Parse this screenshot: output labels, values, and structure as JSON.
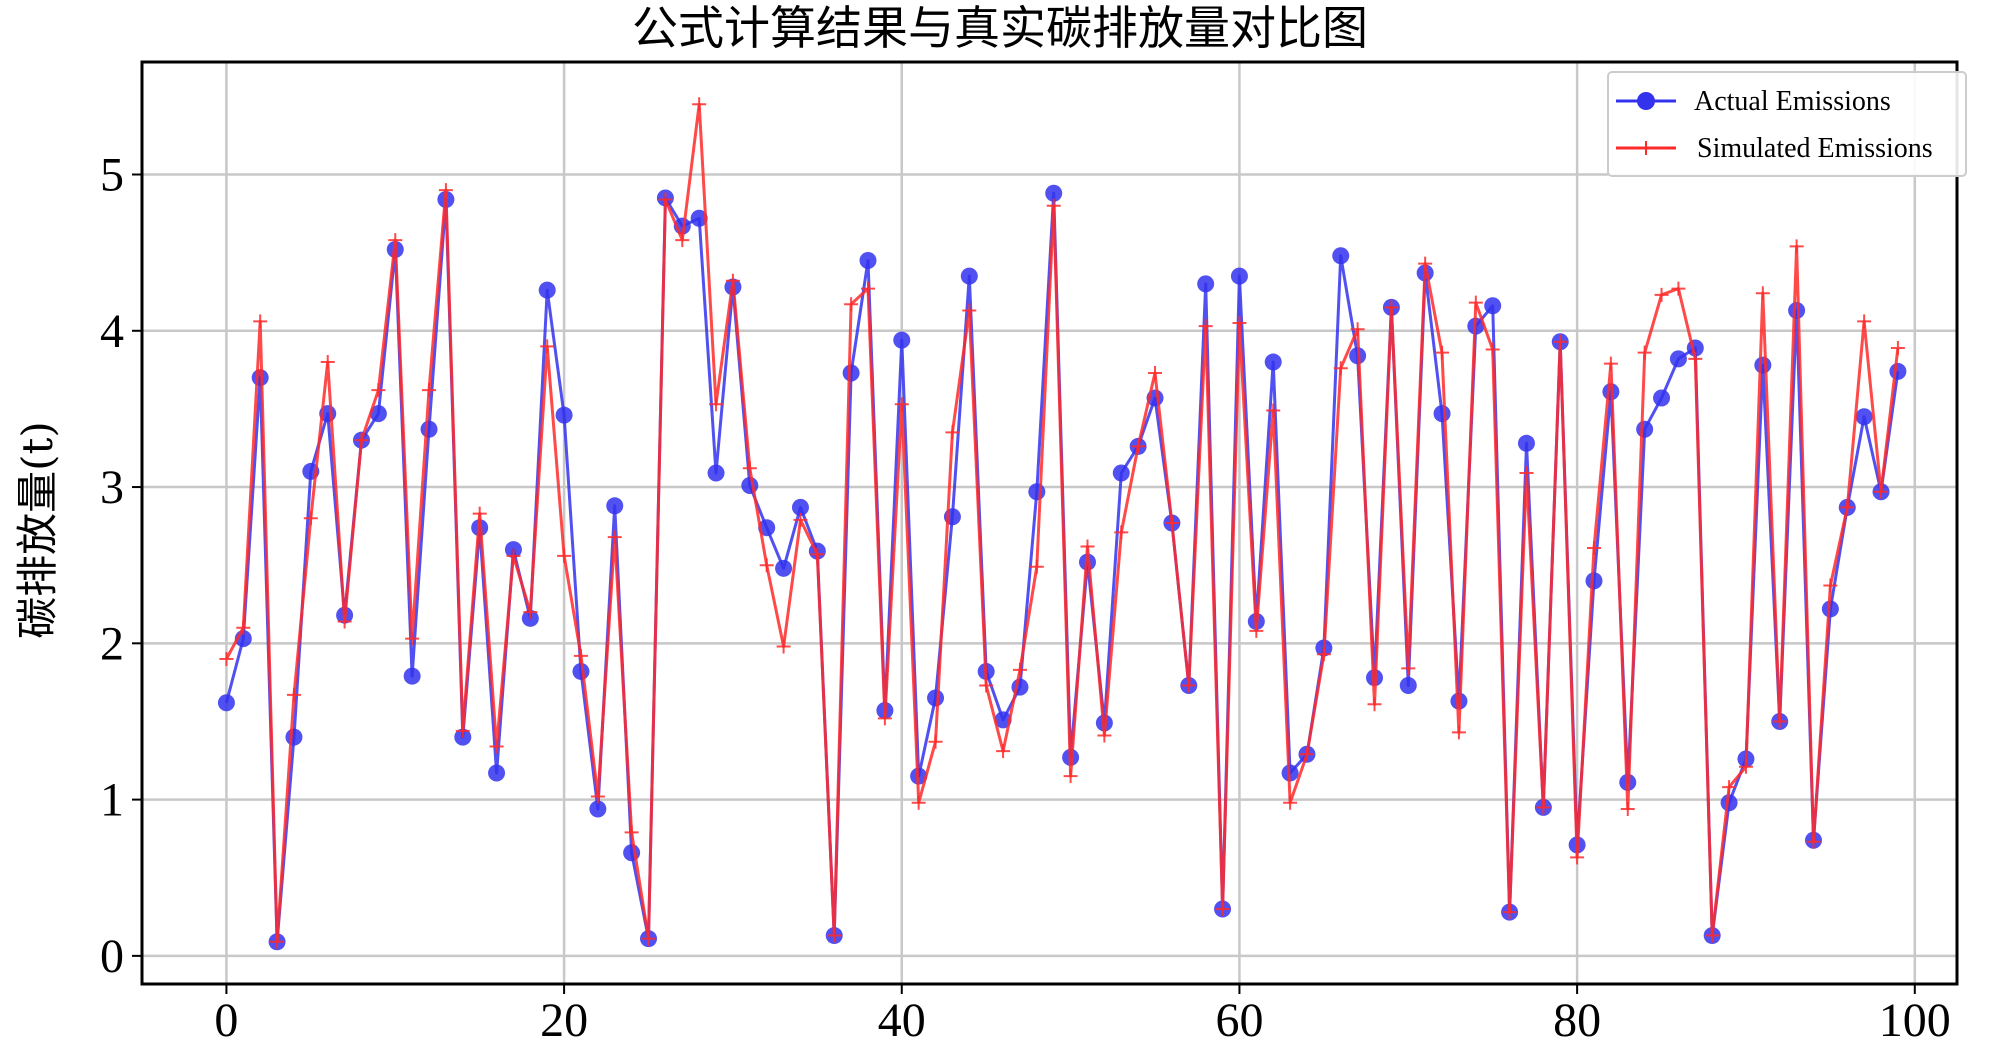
{
  "chart_data": {
    "type": "line",
    "title": "公式计算结果与真实碳排放量对比图",
    "xlabel": "",
    "ylabel": "碳排放量(t)",
    "xlim": [
      -5,
      102.5
    ],
    "ylim": [
      -0.18,
      5.72
    ],
    "x_ticks": [
      0,
      20,
      40,
      60,
      80,
      100
    ],
    "y_ticks": [
      0,
      1,
      2,
      3,
      4,
      5
    ],
    "grid": true,
    "legend_position": "top-right",
    "x": [
      0,
      1,
      2,
      3,
      4,
      5,
      6,
      7,
      8,
      9,
      10,
      11,
      12,
      13,
      14,
      15,
      16,
      17,
      18,
      19,
      20,
      21,
      22,
      23,
      24,
      25,
      26,
      27,
      28,
      29,
      30,
      31,
      32,
      33,
      34,
      35,
      36,
      37,
      38,
      39,
      40,
      41,
      42,
      43,
      44,
      45,
      46,
      47,
      48,
      49,
      50,
      51,
      52,
      53,
      54,
      55,
      56,
      57,
      58,
      59,
      60,
      61,
      62,
      63,
      64,
      65,
      66,
      67,
      68,
      69,
      70,
      71,
      72,
      73,
      74,
      75,
      76,
      77,
      78,
      79,
      80,
      81,
      82,
      83,
      84,
      85,
      86,
      87,
      88,
      89,
      90,
      91,
      92,
      93,
      94,
      95,
      96,
      97,
      98,
      99
    ],
    "series": [
      {
        "name": "Actual Emissions",
        "color": "#3333ee",
        "marker": "circle",
        "values": [
          1.62,
          2.03,
          3.7,
          0.09,
          1.4,
          3.1,
          3.47,
          2.18,
          3.3,
          3.47,
          4.52,
          1.79,
          3.37,
          4.84,
          1.4,
          2.74,
          1.17,
          2.6,
          2.16,
          4.26,
          3.46,
          1.82,
          0.94,
          2.88,
          0.66,
          0.11,
          4.85,
          4.67,
          4.72,
          3.09,
          4.28,
          3.01,
          2.74,
          2.48,
          2.87,
          2.59,
          0.13,
          3.73,
          4.45,
          1.57,
          3.94,
          1.15,
          1.65,
          2.81,
          4.35,
          1.82,
          1.51,
          1.72,
          2.97,
          4.88,
          1.27,
          2.52,
          1.49,
          3.09,
          3.26,
          3.57,
          2.77,
          1.73,
          4.3,
          0.3,
          4.35,
          2.14,
          3.8,
          1.17,
          1.29,
          1.97,
          4.48,
          3.84,
          1.78,
          4.15,
          1.73,
          4.37,
          3.47,
          1.63,
          4.03,
          4.16,
          0.28,
          3.28,
          0.95,
          3.93,
          0.71,
          2.4,
          3.61,
          1.11,
          3.37,
          3.57,
          3.82,
          3.89,
          0.13,
          0.98,
          1.26,
          3.78,
          1.5,
          4.13,
          0.74,
          2.22,
          2.87,
          3.45,
          2.97,
          3.74
        ]
      },
      {
        "name": "Simulated Emissions",
        "color": "#ff2a2a",
        "marker": "plus",
        "values": [
          1.9,
          2.1,
          4.06,
          0.09,
          1.67,
          2.8,
          3.8,
          2.14,
          3.3,
          3.62,
          4.58,
          2.03,
          3.62,
          4.9,
          1.44,
          2.83,
          1.34,
          2.56,
          2.2,
          3.9,
          2.56,
          1.92,
          1.02,
          2.68,
          0.79,
          0.11,
          4.84,
          4.58,
          5.45,
          3.53,
          4.32,
          3.12,
          2.5,
          1.98,
          2.79,
          2.57,
          0.13,
          4.17,
          4.27,
          1.52,
          3.53,
          0.98,
          1.37,
          3.35,
          4.13,
          1.73,
          1.31,
          1.83,
          2.49,
          4.8,
          1.15,
          2.62,
          1.41,
          2.71,
          3.26,
          3.73,
          2.77,
          1.73,
          4.03,
          0.3,
          4.05,
          2.08,
          3.49,
          0.98,
          1.29,
          1.93,
          3.76,
          4.01,
          1.61,
          4.15,
          1.84,
          4.43,
          3.86,
          1.43,
          4.18,
          3.88,
          0.28,
          3.09,
          0.95,
          3.93,
          0.63,
          2.61,
          3.79,
          0.94,
          3.86,
          4.23,
          4.27,
          3.82,
          0.13,
          1.08,
          1.21,
          4.24,
          1.5,
          4.54,
          0.73,
          2.37,
          2.87,
          4.06,
          2.97,
          3.89
        ]
      }
    ]
  }
}
